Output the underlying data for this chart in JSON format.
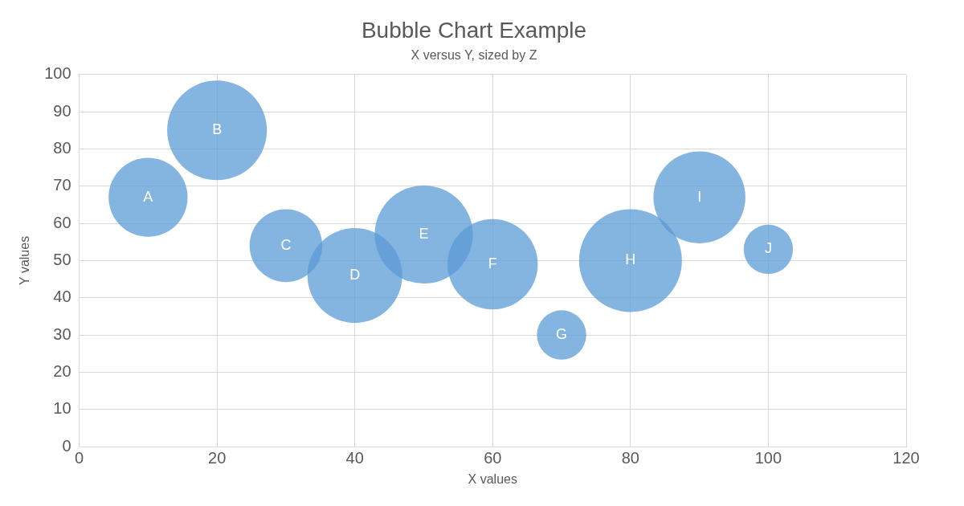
{
  "chart_data": {
    "type": "bubble",
    "title": "Bubble Chart Example",
    "subtitle": "X versus Y, sized by Z",
    "xlabel": "X values",
    "ylabel": "Y values",
    "x": [
      10,
      20,
      30,
      40,
      50,
      60,
      70,
      80,
      90,
      100
    ],
    "values": [
      67,
      85,
      54,
      46,
      57,
      49,
      30,
      50,
      67,
      53
    ],
    "sizes": [
      0.59,
      0.94,
      0.5,
      0.85,
      0.91,
      0.77,
      0.23,
      1,
      0.8,
      0.23
    ],
    "color": "#5b9bd5",
    "xlim": [
      0,
      120
    ],
    "xticks": [
      0,
      20,
      40,
      60,
      80,
      100,
      120
    ],
    "ylim": [
      0,
      100
    ],
    "yticks": [
      0,
      10,
      20,
      30,
      40,
      50,
      60,
      70,
      80,
      90,
      100
    ],
    "grid": true,
    "legend": false,
    "annotations": [
      {
        "text": "A",
        "x": 10,
        "y": 67
      },
      {
        "text": "B",
        "x": 20,
        "y": 85
      },
      {
        "text": "C",
        "x": 30,
        "y": 54
      },
      {
        "text": "D",
        "x": 40,
        "y": 46
      },
      {
        "text": "E",
        "x": 50,
        "y": 57
      },
      {
        "text": "F",
        "x": 60,
        "y": 49
      },
      {
        "text": "G",
        "x": 70,
        "y": 30
      },
      {
        "text": "H",
        "x": 80,
        "y": 50
      },
      {
        "text": "I",
        "x": 90,
        "y": 67
      },
      {
        "text": "J",
        "x": 100,
        "y": 53
      }
    ]
  }
}
